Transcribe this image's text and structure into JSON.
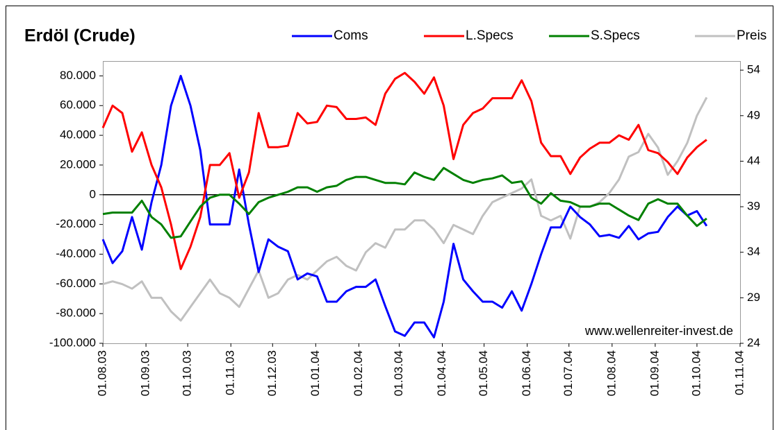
{
  "chart_data": {
    "type": "line",
    "title": "Erdöl (Crude)",
    "annotation": "www.wellenreiter-invest.de",
    "x": [
      "2003-08-01",
      "2003-08-08",
      "2003-08-15",
      "2003-08-22",
      "2003-08-29",
      "2003-09-05",
      "2003-09-12",
      "2003-09-19",
      "2003-09-26",
      "2003-10-03",
      "2003-10-10",
      "2003-10-17",
      "2003-10-24",
      "2003-10-31",
      "2003-11-07",
      "2003-11-14",
      "2003-11-21",
      "2003-11-28",
      "2003-12-05",
      "2003-12-12",
      "2003-12-19",
      "2003-12-26",
      "2004-01-02",
      "2004-01-09",
      "2004-01-16",
      "2004-01-23",
      "2004-01-30",
      "2004-02-06",
      "2004-02-13",
      "2004-02-20",
      "2004-02-27",
      "2004-03-05",
      "2004-03-12",
      "2004-03-19",
      "2004-03-26",
      "2004-04-02",
      "2004-04-09",
      "2004-04-16",
      "2004-04-23",
      "2004-04-30",
      "2004-05-07",
      "2004-05-14",
      "2004-05-21",
      "2004-05-28",
      "2004-06-04",
      "2004-06-11",
      "2004-06-18",
      "2004-06-25",
      "2004-07-02",
      "2004-07-09",
      "2004-07-16",
      "2004-07-23",
      "2004-07-30",
      "2004-08-06",
      "2004-08-13",
      "2004-08-20",
      "2004-08-27",
      "2004-09-03",
      "2004-09-10",
      "2004-09-17",
      "2004-09-24",
      "2004-10-01",
      "2004-10-08"
    ],
    "series": [
      {
        "name": "Coms",
        "color": "#0000ff",
        "values": [
          -30000,
          -46000,
          -38000,
          -15000,
          -37000,
          -5000,
          20000,
          60000,
          80000,
          60000,
          30000,
          -20000,
          -20000,
          -20000,
          17000,
          -20000,
          -52000,
          -30000,
          -35000,
          -38000,
          -57000,
          -53000,
          -55000,
          -72000,
          -72000,
          -65000,
          -62000,
          -62000,
          -57000,
          -75000,
          -92000,
          -95000,
          -86000,
          -86000,
          -96000,
          -72000,
          -33000,
          -57000,
          -65000,
          -72000,
          -72000,
          -76000,
          -65000,
          -78000,
          -60000,
          -40000,
          -22000,
          -22000,
          -8000,
          -15000,
          -20000,
          -28000,
          -27000,
          -29000,
          -21000,
          -30000,
          -26000,
          -25000,
          -15000,
          -8000,
          -14000,
          -11000,
          -21000
        ]
      },
      {
        "name": "L.Specs",
        "color": "#ff0000",
        "values": [
          45000,
          60000,
          55000,
          29000,
          42000,
          20000,
          5000,
          -20000,
          -50000,
          -35000,
          -15000,
          20000,
          20000,
          28000,
          -2000,
          15000,
          55000,
          32000,
          32000,
          33000,
          55000,
          48000,
          49000,
          60000,
          59000,
          51000,
          51000,
          52000,
          47000,
          68000,
          78000,
          82000,
          76000,
          68000,
          79000,
          60000,
          24000,
          47000,
          55000,
          58000,
          65000,
          65000,
          65000,
          77000,
          63000,
          35000,
          26000,
          26000,
          14000,
          25000,
          31000,
          35000,
          35000,
          40000,
          37000,
          47000,
          30000,
          28000,
          22000,
          14000,
          25000,
          32000,
          37000
        ]
      },
      {
        "name": "S.Specs",
        "color": "#008000",
        "values": [
          -13000,
          -12000,
          -12000,
          -12000,
          -4000,
          -15000,
          -20000,
          -29000,
          -28000,
          -18000,
          -8000,
          -2000,
          0,
          0,
          -6000,
          -13000,
          -5000,
          -2000,
          0,
          2000,
          5000,
          5000,
          2000,
          5000,
          6000,
          10000,
          12000,
          12000,
          10000,
          8000,
          8000,
          7000,
          15000,
          12000,
          10000,
          18000,
          14000,
          10000,
          8000,
          10000,
          11000,
          13000,
          8000,
          9000,
          -2000,
          -6000,
          1000,
          -4000,
          -5000,
          -8000,
          -8000,
          -6000,
          -6000,
          -10000,
          -14000,
          -17000,
          -6000,
          -3000,
          -6000,
          -6000,
          -14000,
          -21000,
          -16000
        ]
      },
      {
        "name": "Preis",
        "color": "#c0c0c0",
        "axis": "y2",
        "values": [
          30.5,
          30.8,
          30.5,
          30,
          30.8,
          29,
          29,
          27.5,
          26.5,
          28,
          29.5,
          31,
          29.5,
          29,
          28,
          30,
          32,
          29,
          29.5,
          31,
          31.5,
          31,
          32,
          33,
          33.5,
          32.5,
          32,
          34,
          35,
          34.5,
          36.5,
          36.5,
          37.5,
          37.5,
          36.5,
          35,
          37,
          36.5,
          36,
          38,
          39.5,
          40,
          40.5,
          41,
          42,
          38,
          37.5,
          38,
          35.5,
          39,
          39,
          39.5,
          40.5,
          42,
          44.5,
          45,
          47,
          45.5,
          42.5,
          44,
          46,
          49,
          51
        ]
      }
    ],
    "xlim": [
      "2003-08-01",
      "2004-11-01"
    ],
    "xticks": [
      {
        "value": "2003-08-01",
        "label": "01.08.03"
      },
      {
        "value": "2003-09-01",
        "label": "01.09.03"
      },
      {
        "value": "2003-10-01",
        "label": "01.10.03"
      },
      {
        "value": "2003-11-01",
        "label": "01.11.03"
      },
      {
        "value": "2003-12-01",
        "label": "01.12.03"
      },
      {
        "value": "2004-01-01",
        "label": "01.01.04"
      },
      {
        "value": "2004-02-01",
        "label": "01.02.04"
      },
      {
        "value": "2004-03-01",
        "label": "01.03.04"
      },
      {
        "value": "2004-04-01",
        "label": "01.04.04"
      },
      {
        "value": "2004-05-01",
        "label": "01.05.04"
      },
      {
        "value": "2004-06-01",
        "label": "01.06.04"
      },
      {
        "value": "2004-07-01",
        "label": "01.07.04"
      },
      {
        "value": "2004-08-01",
        "label": "01.08.04"
      },
      {
        "value": "2004-09-01",
        "label": "01.09.04"
      },
      {
        "value": "2004-10-01",
        "label": "01.10.04"
      },
      {
        "value": "2004-11-01",
        "label": "01.11.04"
      }
    ],
    "ylim": [
      -100000,
      90000
    ],
    "yticks": [
      {
        "value": 80000,
        "label": "80.000"
      },
      {
        "value": 60000,
        "label": "60.000"
      },
      {
        "value": 40000,
        "label": "40.000"
      },
      {
        "value": 20000,
        "label": "20.000"
      },
      0,
      {
        "value": -20000,
        "label": "-20.000"
      },
      {
        "value": -40000,
        "label": "-40.000"
      },
      {
        "value": -60000,
        "label": "-60.000"
      },
      {
        "value": -80000,
        "label": "-80.000"
      },
      {
        "value": -100000,
        "label": "-100.000"
      }
    ],
    "y2lim": [
      24,
      55
    ],
    "y2ticks": [
      24,
      29,
      34,
      39,
      44,
      49,
      54
    ],
    "negative_tick_color": "#ff0000",
    "zero_line": true,
    "legend": "top"
  }
}
